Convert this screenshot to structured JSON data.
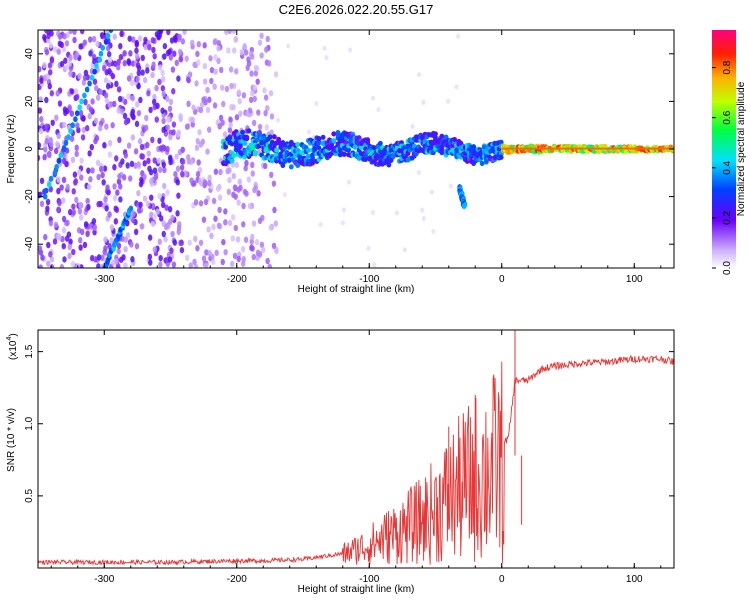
{
  "title": "C2E6.2026.022.20.55.G17",
  "chart_data": [
    {
      "type": "heatmap",
      "name": "spectrogram",
      "xlabel": "Height of straight line (km)",
      "ylabel": "Frequency (Hz)",
      "xlim": [
        -350,
        130
      ],
      "ylim": [
        -50,
        50
      ],
      "xticks": [
        -300,
        -200,
        -100,
        0,
        100
      ],
      "yticks": [
        -40,
        -20,
        0,
        20,
        40
      ],
      "colorbar": {
        "label": "Normalized spectral amplitude",
        "range": [
          0,
          0.95
        ],
        "ticks": [
          0.0,
          0.2,
          0.4,
          0.6,
          0.8
        ]
      },
      "features": [
        {
          "name": "main-line",
          "x": [
            -210,
            130
          ],
          "freq_hz": 0,
          "amplitude_lowx": 0.35,
          "amplitude_highx": 0.9,
          "spread_hz": [
            6,
            2
          ]
        },
        {
          "name": "streak-upper",
          "x": [
            -345,
            -295
          ],
          "y": [
            -20,
            50
          ],
          "amplitude": 0.3
        },
        {
          "name": "streak-lower",
          "x": [
            -300,
            -280
          ],
          "y": [
            -50,
            -25
          ],
          "amplitude": 0.3
        },
        {
          "name": "spur",
          "x": [
            -32,
            -28
          ],
          "y": [
            -16,
            -24
          ],
          "amplitude": 0.3
        }
      ]
    },
    {
      "type": "line",
      "name": "snr",
      "xlabel": "Height of straight line (km)",
      "ylabel": "SNR (10 * v/v)",
      "multiplier_label": "(x10",
      "multiplier_exp": "4",
      "xlim": [
        -350,
        130
      ],
      "ylim": [
        0,
        1.65
      ],
      "xticks": [
        -300,
        -200,
        -100,
        0,
        100
      ],
      "yticks": [
        0.5,
        1.0,
        1.5
      ],
      "series": [
        {
          "name": "SNR",
          "color": "#ee3333",
          "x": [
            -350,
            -300,
            -250,
            -200,
            -180,
            -150,
            -120,
            -100,
            -80,
            -60,
            -40,
            -20,
            -5,
            5,
            10,
            20,
            30,
            40,
            60,
            80,
            100,
            120,
            130
          ],
          "y": [
            0.04,
            0.04,
            0.04,
            0.05,
            0.05,
            0.06,
            0.1,
            0.18,
            0.3,
            0.42,
            0.55,
            0.7,
            0.8,
            0.9,
            1.3,
            1.3,
            1.38,
            1.4,
            1.42,
            1.43,
            1.45,
            1.45,
            1.43
          ],
          "noise_band": [
            [
              -120,
              0.05
            ],
            [
              -60,
              0.2
            ],
            [
              -30,
              0.45
            ],
            [
              0,
              0.6
            ]
          ],
          "spikes": [
            [
              -40,
              0.98
            ],
            [
              -20,
              1.2
            ],
            [
              10,
              1.65
            ],
            [
              15,
              0.3
            ]
          ]
        }
      ]
    }
  ],
  "colors": {
    "axis": "#000000",
    "line": "#ee3333",
    "background": "#ffffff"
  }
}
